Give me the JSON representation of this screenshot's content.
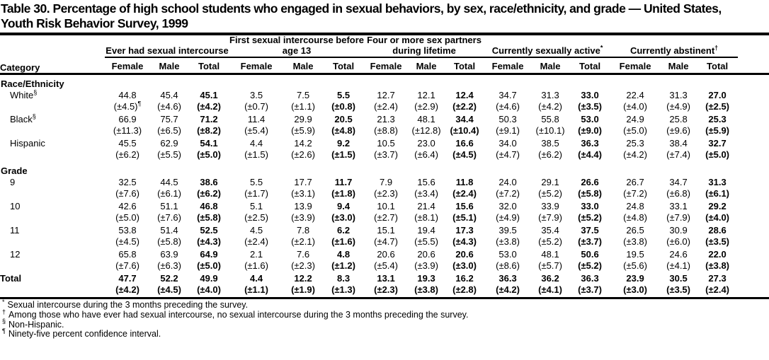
{
  "title": {
    "line1": "Table 30. Percentage of high school students who engaged in sexual behaviors, by sex, race/ethnicity, and grade — United States,",
    "line2": "Youth Risk Behavior Survey, 1999"
  },
  "table": {
    "category_label": "Category",
    "sex_headers": [
      "Female",
      "Male",
      "Total"
    ],
    "groups": [
      {
        "label": "Ever had sexual intercourse",
        "marker": ""
      },
      {
        "label": "First sexual intercourse before age 13",
        "marker": ""
      },
      {
        "label": "Four or more sex partners during lifetime",
        "marker": ""
      },
      {
        "label": "Currently sexually active",
        "marker": "*"
      },
      {
        "label": "Currently abstinent",
        "marker": "†"
      }
    ],
    "sections": [
      {
        "header": "Race/Ethnicity",
        "rows": [
          {
            "label": "White",
            "marker": "§",
            "values": [
              "44.8",
              "45.4",
              "45.1",
              "3.5",
              "7.5",
              "5.5",
              "12.7",
              "12.1",
              "12.4",
              "34.7",
              "31.3",
              "33.0",
              "22.4",
              "31.3",
              "27.0"
            ],
            "ci": [
              "(±4.5)¶",
              "(±4.6)",
              "(±4.2)",
              "(±0.7)",
              "(±1.1)",
              "(±0.8)",
              "(±2.4)",
              "(±2.9)",
              "(±2.2)",
              "(±4.6)",
              "(±4.2)",
              "(±3.5)",
              "(±4.0)",
              "(±4.9)",
              "(±2.5)"
            ]
          },
          {
            "label": "Black",
            "marker": "§",
            "values": [
              "66.9",
              "75.7",
              "71.2",
              "11.4",
              "29.9",
              "20.5",
              "21.3",
              "48.1",
              "34.4",
              "50.3",
              "55.8",
              "53.0",
              "24.9",
              "25.8",
              "25.3"
            ],
            "ci": [
              "(±11.3)",
              "(±6.5)",
              "(±8.2)",
              "(±5.4)",
              "(±5.9)",
              "(±4.8)",
              "(±8.8)",
              "(±12.8)",
              "(±10.4)",
              "(±9.1)",
              "(±10.1)",
              "(±9.0)",
              "(±5.0)",
              "(±9.6)",
              "(±5.9)"
            ]
          },
          {
            "label": "Hispanic",
            "marker": "",
            "values": [
              "45.5",
              "62.9",
              "54.1",
              "4.4",
              "14.2",
              "9.2",
              "10.5",
              "23.0",
              "16.6",
              "34.0",
              "38.5",
              "36.3",
              "25.3",
              "38.4",
              "32.7"
            ],
            "ci": [
              "(±6.2)",
              "(±5.5)",
              "(±5.0)",
              "(±1.5)",
              "(±2.6)",
              "(±1.5)",
              "(±3.7)",
              "(±6.4)",
              "(±4.5)",
              "(±4.7)",
              "(±6.2)",
              "(±4.4)",
              "(±4.2)",
              "(±7.4)",
              "(±5.0)"
            ]
          }
        ]
      },
      {
        "header": "Grade",
        "rows": [
          {
            "label": "9",
            "marker": "",
            "values": [
              "32.5",
              "44.5",
              "38.6",
              "5.5",
              "17.7",
              "11.7",
              "7.9",
              "15.6",
              "11.8",
              "24.0",
              "29.1",
              "26.6",
              "26.7",
              "34.7",
              "31.3"
            ],
            "ci": [
              "(±7.6)",
              "(±6.1)",
              "(±6.2)",
              "(±1.7)",
              "(±3.1)",
              "(±1.8)",
              "(±2.3)",
              "(±3.4)",
              "(±2.4)",
              "(±7.2)",
              "(±5.2)",
              "(±5.8)",
              "(±7.2)",
              "(±6.8)",
              "(±6.1)"
            ]
          },
          {
            "label": "10",
            "marker": "",
            "values": [
              "42.6",
              "51.1",
              "46.8",
              "5.1",
              "13.9",
              "9.4",
              "10.1",
              "21.4",
              "15.6",
              "32.0",
              "33.9",
              "33.0",
              "24.8",
              "33.1",
              "29.2"
            ],
            "ci": [
              "(±5.0)",
              "(±7.6)",
              "(±5.8)",
              "(±2.5)",
              "(±3.9)",
              "(±3.0)",
              "(±2.7)",
              "(±8.1)",
              "(±5.1)",
              "(±4.9)",
              "(±7.9)",
              "(±5.2)",
              "(±4.8)",
              "(±7.9)",
              "(±4.0)"
            ]
          },
          {
            "label": "11",
            "marker": "",
            "values": [
              "53.8",
              "51.4",
              "52.5",
              "4.5",
              "7.8",
              "6.2",
              "15.1",
              "19.4",
              "17.3",
              "39.5",
              "35.4",
              "37.5",
              "26.5",
              "30.9",
              "28.6"
            ],
            "ci": [
              "(±4.5)",
              "(±5.8)",
              "(±4.3)",
              "(±2.4)",
              "(±2.1)",
              "(±1.6)",
              "(±4.7)",
              "(±5.5)",
              "(±4.3)",
              "(±3.8)",
              "(±5.2)",
              "(±3.7)",
              "(±3.8)",
              "(±6.0)",
              "(±3.5)"
            ]
          },
          {
            "label": "12",
            "marker": "",
            "values": [
              "65.8",
              "63.9",
              "64.9",
              "2.1",
              "7.6",
              "4.8",
              "20.6",
              "20.6",
              "20.6",
              "53.0",
              "48.1",
              "50.6",
              "19.5",
              "24.6",
              "22.0"
            ],
            "ci": [
              "(±7.6)",
              "(±6.3)",
              "(±5.0)",
              "(±1.6)",
              "(±2.3)",
              "(±1.2)",
              "(±5.4)",
              "(±3.9)",
              "(±3.0)",
              "(±8.6)",
              "(±5.7)",
              "(±5.2)",
              "(±5.6)",
              "(±4.1)",
              "(±3.8)"
            ]
          }
        ]
      }
    ],
    "total_row": {
      "label": "Total",
      "marker": "",
      "values": [
        "47.7",
        "52.2",
        "49.9",
        "4.4",
        "12.2",
        "8.3",
        "13.1",
        "19.3",
        "16.2",
        "36.3",
        "36.2",
        "36.3",
        "23.9",
        "30.5",
        "27.3"
      ],
      "ci": [
        "(±4.2)",
        "(±4.5)",
        "(±4.0)",
        "(±1.1)",
        "(±1.9)",
        "(±1.3)",
        "(±2.3)",
        "(±3.8)",
        "(±2.8)",
        "(±4.2)",
        "(±4.1)",
        "(±3.7)",
        "(±3.0)",
        "(±3.5)",
        "(±2.4)"
      ]
    }
  },
  "footnotes": [
    {
      "marker": "*",
      "text": "Sexual intercourse during the 3 months preceding the survey."
    },
    {
      "marker": "†",
      "text": "Among those who have ever had sexual intercourse, no sexual intercourse during the 3 months preceding the survey."
    },
    {
      "marker": "§",
      "text": "Non-Hispanic."
    },
    {
      "marker": "¶",
      "text": "Ninety-five percent confidence interval."
    }
  ],
  "colors": {
    "text": "#000000",
    "background": "#ffffff",
    "rule": "#000000"
  }
}
